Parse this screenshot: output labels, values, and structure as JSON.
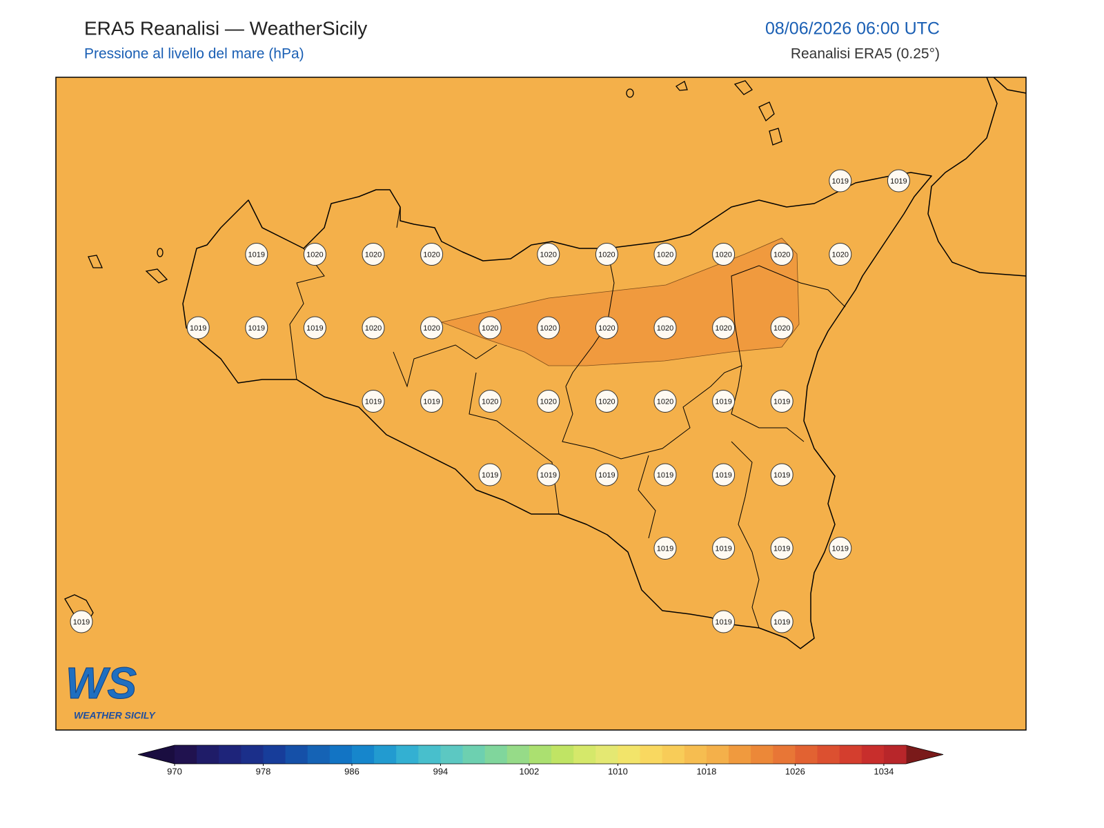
{
  "header": {
    "title": "ERA5 Reanalisi — WeatherSicily",
    "subtitle": "Pressione al livello del mare (hPa)",
    "datetime": "08/06/2026 06:00 UTC",
    "source": "Reanalisi ERA5 (0.25°)"
  },
  "map": {
    "field_value": 1019,
    "contour_value": 1021,
    "labels": [
      [
        null,
        null,
        null,
        null,
        null,
        null,
        null,
        null,
        null,
        null,
        null,
        null,
        null,
        1019,
        1019
      ],
      [
        null,
        null,
        null,
        1019,
        1020,
        1020,
        1020,
        null,
        1020,
        1020,
        1020,
        1020,
        1020,
        1020,
        null
      ],
      [
        null,
        null,
        1019,
        1019,
        1019,
        1020,
        1020,
        1020,
        1020,
        1020,
        1020,
        1020,
        1020,
        null,
        null
      ],
      [
        null,
        null,
        null,
        null,
        null,
        1019,
        1019,
        1020,
        1020,
        1020,
        1020,
        1019,
        1019,
        null,
        null
      ],
      [
        null,
        null,
        null,
        null,
        null,
        null,
        null,
        1019,
        1019,
        1019,
        1019,
        1019,
        1019,
        null,
        null
      ],
      [
        null,
        null,
        null,
        null,
        null,
        null,
        null,
        null,
        null,
        null,
        1019,
        1019,
        1019,
        1019,
        null
      ],
      [
        1019,
        null,
        null,
        null,
        null,
        null,
        null,
        null,
        null,
        null,
        null,
        1019,
        1019,
        null,
        null
      ]
    ]
  },
  "logo": {
    "mark": "WS",
    "name": "WEATHER SICILY"
  },
  "colorbar": {
    "lim": [
      970,
      1036
    ],
    "ticks": [
      970,
      978,
      986,
      994,
      1002,
      1010,
      1018,
      1026,
      1034
    ],
    "under_color": "#1a0d40",
    "over_color": "#7a1a1a",
    "colors": [
      "#20124f",
      "#1f1c68",
      "#1e247a",
      "#1b2f8a",
      "#173d9a",
      "#1550a8",
      "#1563b5",
      "#1274c4",
      "#1686cc",
      "#229bd0",
      "#33b0d2",
      "#48bfcc",
      "#5cc8c2",
      "#6dd0b0",
      "#80d69c",
      "#96db88",
      "#abe070",
      "#c0e464",
      "#d5e86a",
      "#e4e872",
      "#f2e46a",
      "#f9d860",
      "#f8cc58",
      "#f6bd50",
      "#f4b04a",
      "#f09a3e",
      "#ec8838",
      "#e87636",
      "#e26232",
      "#dc5030",
      "#d43e2e",
      "#c82e2c",
      "#b8262a"
    ]
  }
}
